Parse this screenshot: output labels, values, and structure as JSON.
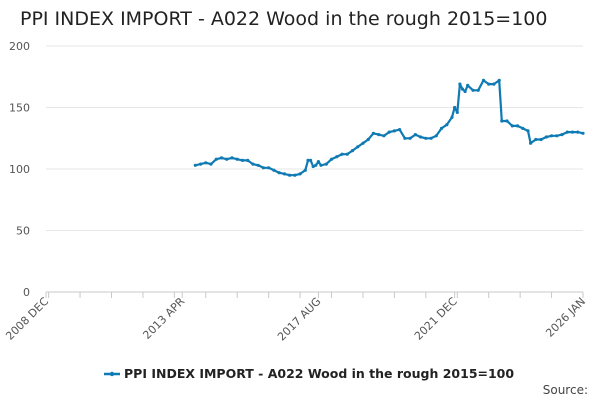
{
  "chart_data": {
    "type": "line",
    "title": "PPI INDEX IMPORT - A022 Wood in the rough 2015=100",
    "xlabel": "",
    "ylabel": "",
    "xlim": [
      "2008-12",
      "2026-01"
    ],
    "ylim": [
      0,
      200
    ],
    "y_ticks": [
      0,
      50,
      100,
      150,
      200
    ],
    "x_ticks": [
      {
        "date": "2008-12",
        "label": "2008 DEC"
      },
      {
        "date": "2013-04",
        "label": "2013 APR"
      },
      {
        "date": "2017-08",
        "label": "2017 AUG"
      },
      {
        "date": "2021-12",
        "label": "2021 DEC"
      },
      {
        "date": "2026-01",
        "label": "2026 JAN"
      }
    ],
    "grid": {
      "horizontal": true,
      "vertical": false
    },
    "legend_position": "bottom",
    "source_label": "Source:",
    "color": "#0f7ab3",
    "series": [
      {
        "name": "PPI INDEX IMPORT - A022 Wood in the rough 2015=100",
        "points": [
          [
            "2013-09",
            103
          ],
          [
            "2013-11",
            104
          ],
          [
            "2014-01",
            105
          ],
          [
            "2014-03",
            104
          ],
          [
            "2014-05",
            108
          ],
          [
            "2014-07",
            109
          ],
          [
            "2014-09",
            108
          ],
          [
            "2014-11",
            109
          ],
          [
            "2015-01",
            108
          ],
          [
            "2015-03",
            107
          ],
          [
            "2015-05",
            107
          ],
          [
            "2015-07",
            104
          ],
          [
            "2015-09",
            103
          ],
          [
            "2015-11",
            101
          ],
          [
            "2016-01",
            101
          ],
          [
            "2016-03",
            99
          ],
          [
            "2016-05",
            97
          ],
          [
            "2016-07",
            96
          ],
          [
            "2016-09",
            95
          ],
          [
            "2016-11",
            95
          ],
          [
            "2017-01",
            96
          ],
          [
            "2017-03",
            99
          ],
          [
            "2017-04",
            107
          ],
          [
            "2017-05",
            107
          ],
          [
            "2017-06",
            102
          ],
          [
            "2017-07",
            103
          ],
          [
            "2017-08",
            106
          ],
          [
            "2017-09",
            103
          ],
          [
            "2017-11",
            104
          ],
          [
            "2018-01",
            108
          ],
          [
            "2018-03",
            110
          ],
          [
            "2018-05",
            112
          ],
          [
            "2018-07",
            112
          ],
          [
            "2018-09",
            115
          ],
          [
            "2018-11",
            118
          ],
          [
            "2019-01",
            121
          ],
          [
            "2019-03",
            124
          ],
          [
            "2019-05",
            129
          ],
          [
            "2019-07",
            128
          ],
          [
            "2019-09",
            127
          ],
          [
            "2019-11",
            130
          ],
          [
            "2020-01",
            131
          ],
          [
            "2020-03",
            132
          ],
          [
            "2020-05",
            125
          ],
          [
            "2020-07",
            125
          ],
          [
            "2020-09",
            128
          ],
          [
            "2020-11",
            126
          ],
          [
            "2021-01",
            125
          ],
          [
            "2021-03",
            125
          ],
          [
            "2021-05",
            127
          ],
          [
            "2021-07",
            133
          ],
          [
            "2021-09",
            136
          ],
          [
            "2021-11",
            142
          ],
          [
            "2021-12",
            150
          ],
          [
            "2022-01",
            146
          ],
          [
            "2022-02",
            169
          ],
          [
            "2022-03",
            165
          ],
          [
            "2022-04",
            163
          ],
          [
            "2022-05",
            168
          ],
          [
            "2022-07",
            164
          ],
          [
            "2022-09",
            164
          ],
          [
            "2022-11",
            172
          ],
          [
            "2023-01",
            169
          ],
          [
            "2023-03",
            169
          ],
          [
            "2023-05",
            172
          ],
          [
            "2023-06",
            139
          ],
          [
            "2023-08",
            139
          ],
          [
            "2023-10",
            135
          ],
          [
            "2023-12",
            135
          ],
          [
            "2024-02",
            133
          ],
          [
            "2024-04",
            131
          ],
          [
            "2024-05",
            121
          ],
          [
            "2024-07",
            124
          ],
          [
            "2024-09",
            124
          ],
          [
            "2024-11",
            126
          ],
          [
            "2025-01",
            127
          ],
          [
            "2025-03",
            127
          ],
          [
            "2025-05",
            128
          ],
          [
            "2025-07",
            130
          ],
          [
            "2025-09",
            130
          ],
          [
            "2025-11",
            130
          ],
          [
            "2026-01",
            129
          ]
        ]
      }
    ]
  }
}
